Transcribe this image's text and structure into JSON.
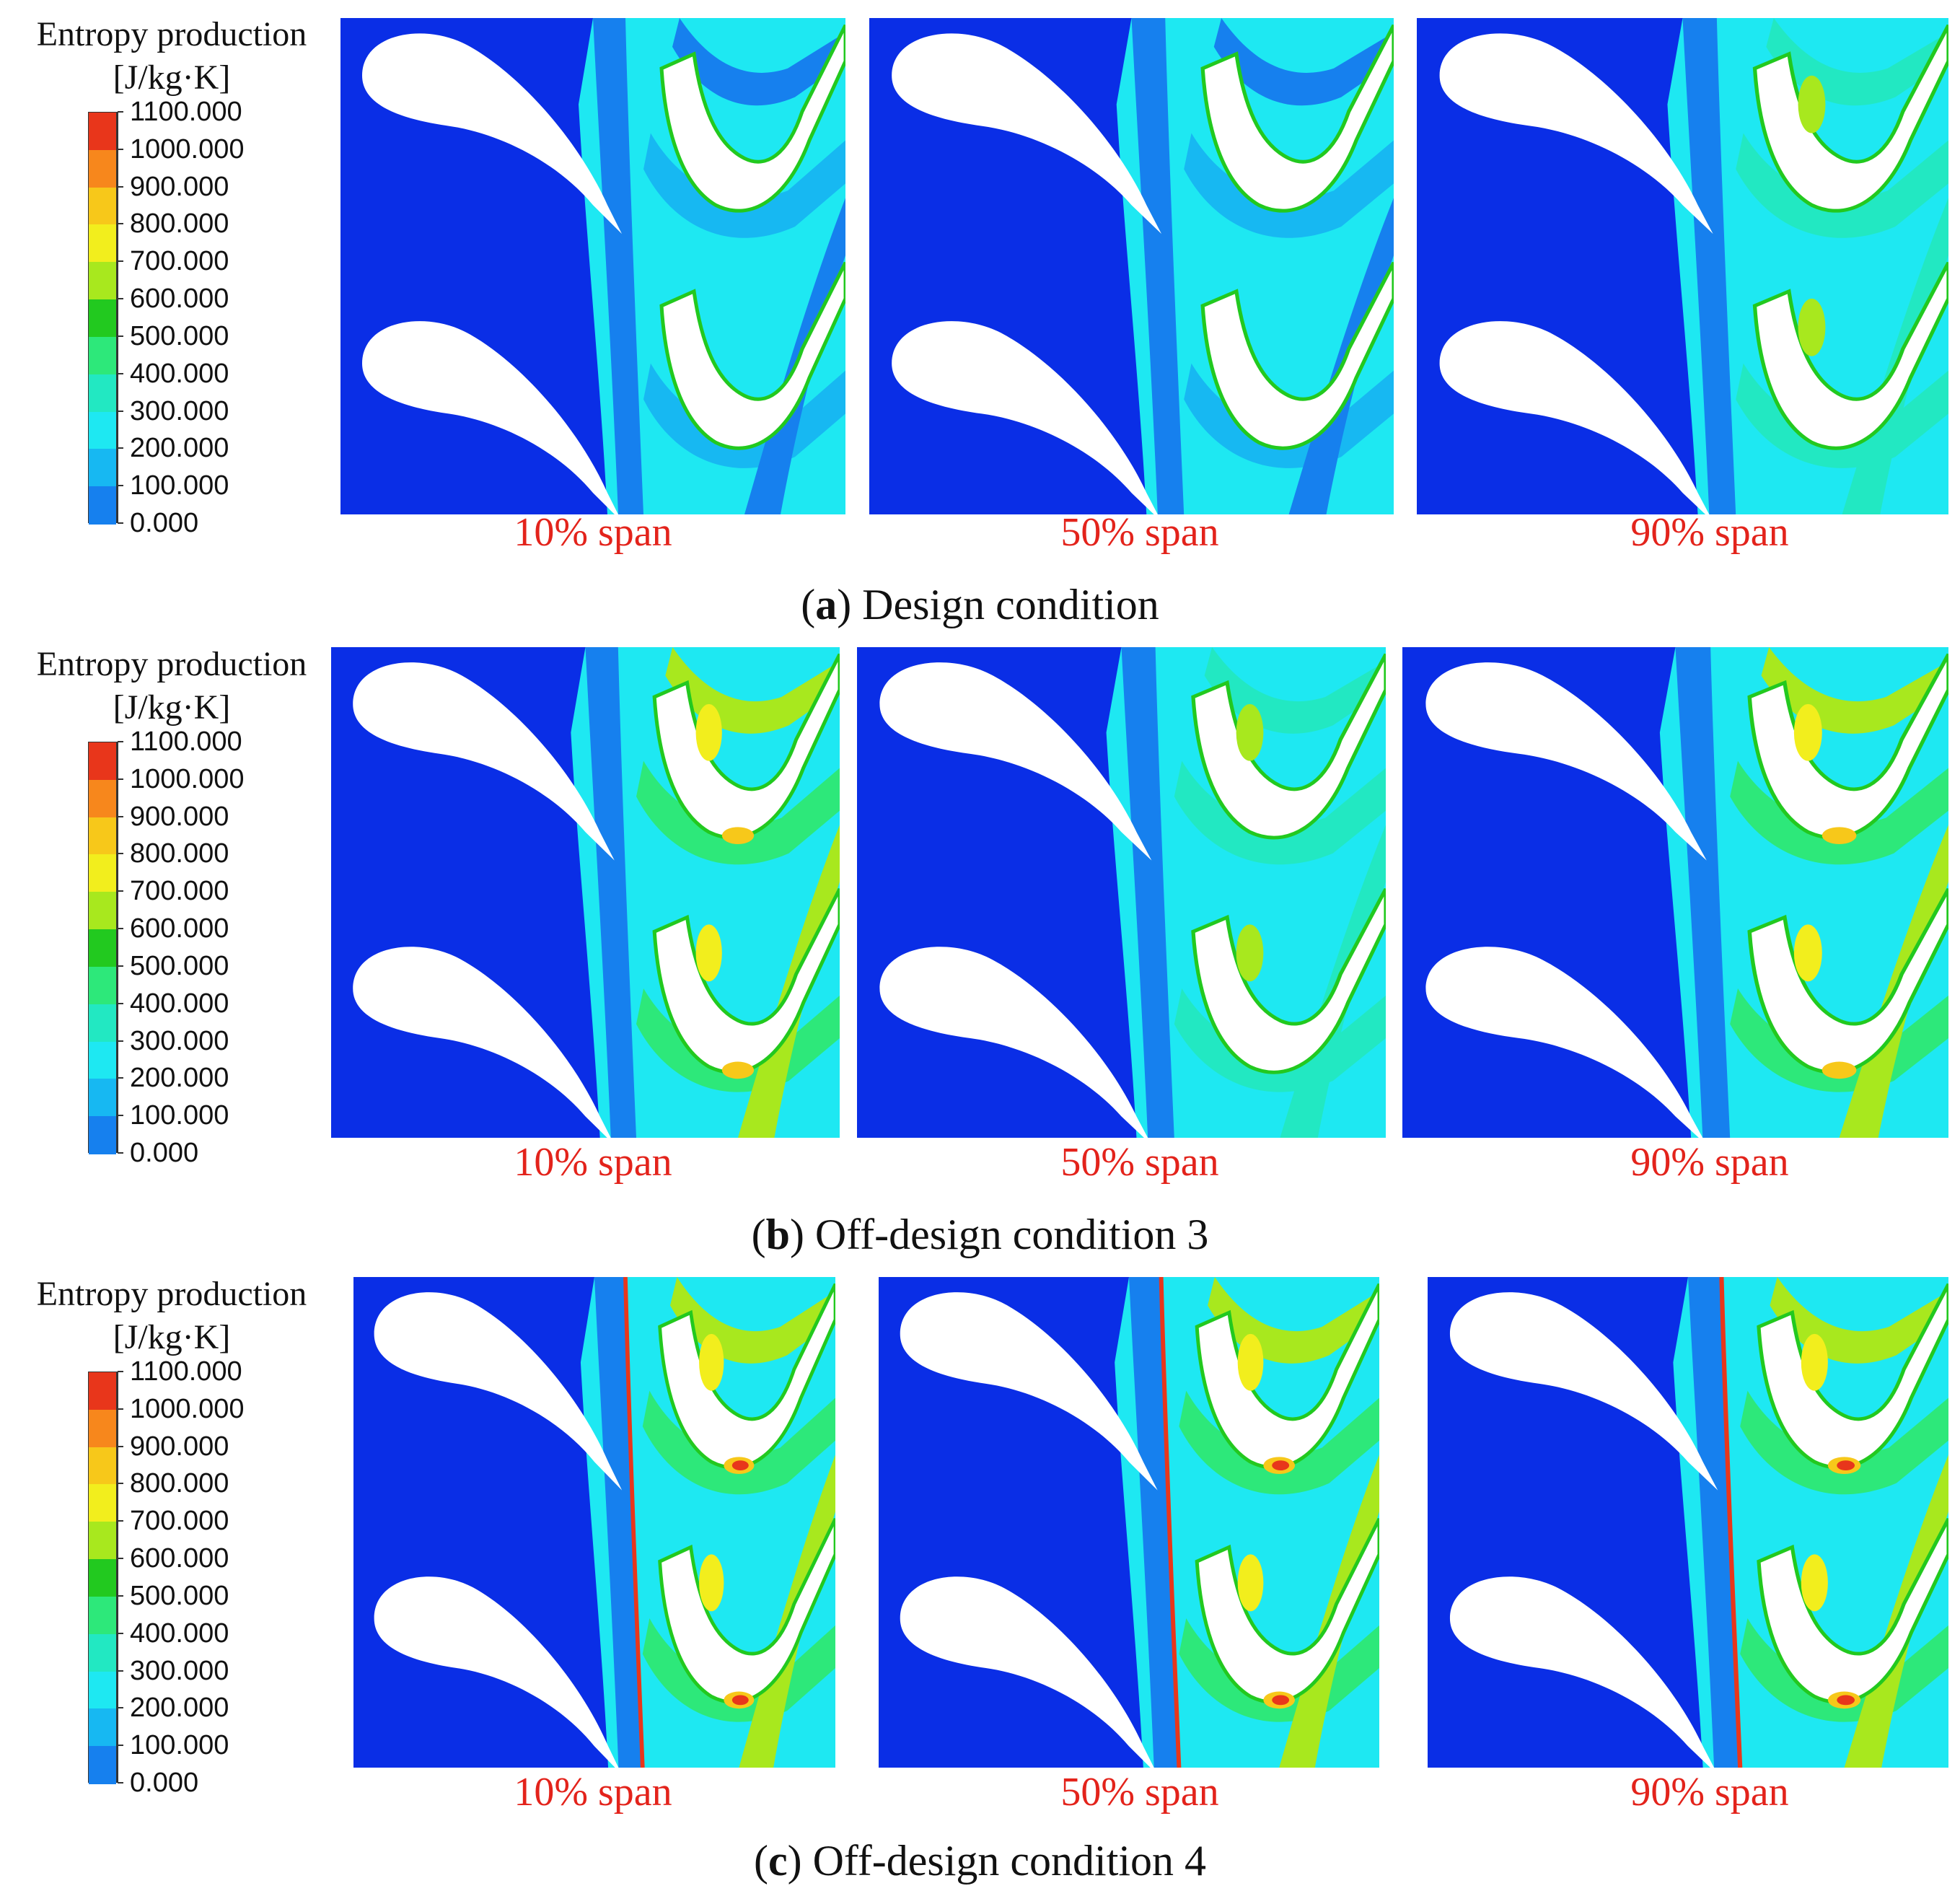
{
  "legend": {
    "title_line1": "Entropy production",
    "title_line2": "[J/kg·K]",
    "ticks": [
      "1100.000",
      "1000.000",
      "900.000",
      "800.000",
      "700.000",
      "600.000",
      "500.000",
      "400.000",
      "300.000",
      "200.000",
      "100.000",
      "0.000"
    ],
    "colors": [
      "#e8361b",
      "#f7871c",
      "#f7c81a",
      "#f2ee1d",
      "#a8e81e",
      "#22c91f",
      "#2de87a",
      "#22e8c2",
      "#1ee8f2",
      "#17b8f2",
      "#1680ee",
      "#0a2ee6"
    ]
  },
  "rows": [
    {
      "caption_letter": "a",
      "caption_text": "Design condition",
      "panels": [
        {
          "label": "10% span",
          "hot": 0
        },
        {
          "label": "50% span",
          "hot": 0
        },
        {
          "label": "90% span",
          "hot": 1
        }
      ]
    },
    {
      "caption_letter": "b",
      "caption_text": "Off-design condition 3",
      "panels": [
        {
          "label": "10% span",
          "hot": 2
        },
        {
          "label": "50% span",
          "hot": 1
        },
        {
          "label": "90% span",
          "hot": 2
        }
      ]
    },
    {
      "caption_letter": "c",
      "caption_text": "Off-design condition 4",
      "panels": [
        {
          "label": "10% span",
          "hot": 3
        },
        {
          "label": "50% span",
          "hot": 3
        },
        {
          "label": "90% span",
          "hot": 3
        }
      ]
    }
  ]
}
